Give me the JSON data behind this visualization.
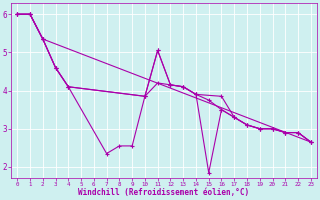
{
  "xlabel": "Windchill (Refroidissement éolien,°C)",
  "background_color": "#cff0f0",
  "grid_color": "#ffffff",
  "line_color": "#aa00aa",
  "xlim": [
    -0.5,
    23.5
  ],
  "ylim": [
    1.7,
    6.3
  ],
  "xticks": [
    0,
    1,
    2,
    3,
    4,
    5,
    6,
    7,
    8,
    9,
    10,
    11,
    12,
    13,
    14,
    15,
    16,
    17,
    18,
    19,
    20,
    21,
    22,
    23
  ],
  "yticks": [
    2,
    3,
    4,
    5,
    6
  ],
  "lines": [
    {
      "x": [
        0,
        1,
        2,
        3,
        4,
        7,
        8,
        9,
        10,
        11,
        12,
        13,
        14,
        15,
        16,
        17,
        18,
        19,
        20,
        21,
        22,
        23
      ],
      "y": [
        6.0,
        6.0,
        5.35,
        4.6,
        4.1,
        2.35,
        2.55,
        2.55,
        3.85,
        5.05,
        4.15,
        4.1,
        3.9,
        3.75,
        3.5,
        3.3,
        3.1,
        3.0,
        3.0,
        2.9,
        2.9,
        2.65
      ]
    },
    {
      "x": [
        0,
        1,
        2,
        3,
        4,
        10,
        11,
        12,
        13,
        14,
        15,
        16,
        17,
        18,
        19,
        20,
        21,
        22,
        23
      ],
      "y": [
        6.0,
        6.0,
        5.35,
        4.6,
        4.1,
        3.85,
        5.05,
        4.15,
        4.1,
        3.9,
        1.85,
        3.5,
        3.3,
        3.1,
        3.0,
        3.0,
        2.9,
        2.9,
        2.65
      ]
    },
    {
      "x": [
        0,
        1,
        2,
        23
      ],
      "y": [
        6.0,
        6.0,
        5.35,
        2.65
      ]
    },
    {
      "x": [
        0,
        1,
        2,
        3,
        4,
        10,
        11,
        12,
        13,
        14,
        16,
        17,
        18,
        19,
        20,
        21,
        22,
        23
      ],
      "y": [
        6.0,
        6.0,
        5.35,
        4.6,
        4.1,
        3.85,
        4.2,
        4.15,
        4.1,
        3.9,
        3.85,
        3.3,
        3.1,
        3.0,
        3.0,
        2.9,
        2.9,
        2.65
      ]
    }
  ]
}
